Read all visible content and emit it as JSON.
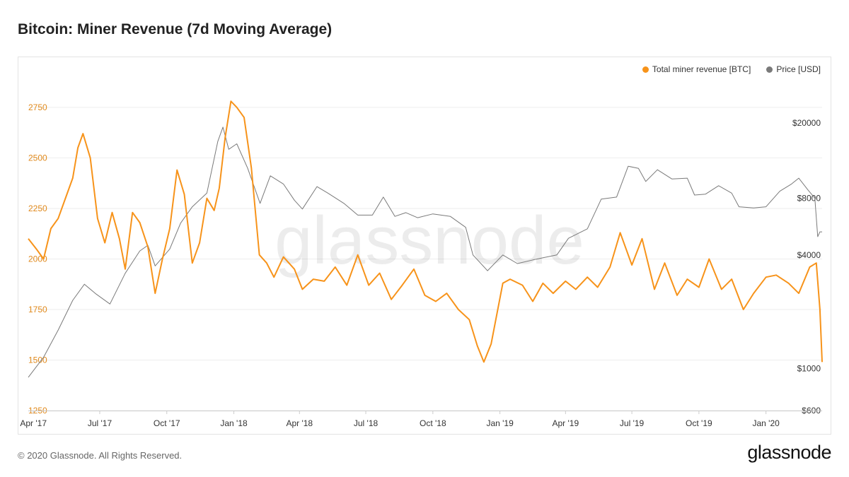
{
  "page": {
    "title": "Bitcoin: Miner Revenue (7d Moving Average)",
    "footer": "© 2020 Glassnode. All Rights Reserved.",
    "brand": "glassnode"
  },
  "colors": {
    "revenue": "#f7931a",
    "price": "#7a7a7a",
    "left_axis_text": "#e0891c",
    "grid": "#eeeeee"
  },
  "chart_data": {
    "type": "line",
    "title": "Bitcoin: Miner Revenue (7d Moving Average)",
    "watermark": "glassnode",
    "x_tick_labels": [
      "Apr '17",
      "Jul '17",
      "Oct '17",
      "Jan '18",
      "Apr '18",
      "Jul '18",
      "Oct '18",
      "Jan '19",
      "Apr '19",
      "Jul '19",
      "Oct '19",
      "Jan '20"
    ],
    "x_range": [
      "2017-03-25",
      "2020-03-18"
    ],
    "left_axis": {
      "label": "Total miner revenue [BTC]",
      "ticks": [
        1250,
        1500,
        1750,
        2000,
        2250,
        2500,
        2750
      ],
      "ylim": [
        1250,
        2900
      ]
    },
    "right_axis": {
      "label": "Price [USD]",
      "scale": "log",
      "ticks": [
        600,
        1000,
        4000,
        8000,
        20000
      ],
      "tick_labels": [
        "$600",
        "$1000",
        "$4000",
        "$8000",
        "$20000"
      ],
      "ylim": [
        600,
        35000
      ]
    },
    "legend": {
      "position": "top-right",
      "items": [
        "Total miner revenue [BTC]",
        "Price [USD]"
      ]
    },
    "series": [
      {
        "name": "Total miner revenue [BTC]",
        "axis": "left",
        "dates": [
          "2017-03-25",
          "2017-04-05",
          "2017-04-15",
          "2017-04-25",
          "2017-05-05",
          "2017-05-15",
          "2017-05-25",
          "2017-06-01",
          "2017-06-08",
          "2017-06-18",
          "2017-06-28",
          "2017-07-08",
          "2017-07-18",
          "2017-07-28",
          "2017-08-05",
          "2017-08-15",
          "2017-08-25",
          "2017-09-05",
          "2017-09-15",
          "2017-09-25",
          "2017-10-05",
          "2017-10-15",
          "2017-10-25",
          "2017-11-05",
          "2017-11-15",
          "2017-11-25",
          "2017-12-05",
          "2017-12-12",
          "2017-12-20",
          "2017-12-28",
          "2018-01-05",
          "2018-01-15",
          "2018-01-25",
          "2018-02-05",
          "2018-02-15",
          "2018-02-25",
          "2018-03-10",
          "2018-03-25",
          "2018-04-05",
          "2018-04-20",
          "2018-05-05",
          "2018-05-20",
          "2018-06-05",
          "2018-06-20",
          "2018-07-05",
          "2018-07-20",
          "2018-08-05",
          "2018-08-20",
          "2018-09-05",
          "2018-09-20",
          "2018-10-05",
          "2018-10-20",
          "2018-11-05",
          "2018-11-20",
          "2018-12-01",
          "2018-12-10",
          "2018-12-20",
          "2019-01-05",
          "2019-01-15",
          "2019-02-01",
          "2019-02-15",
          "2019-03-01",
          "2019-03-15",
          "2019-04-01",
          "2019-04-15",
          "2019-05-01",
          "2019-05-15",
          "2019-06-01",
          "2019-06-15",
          "2019-07-01",
          "2019-07-15",
          "2019-08-01",
          "2019-08-15",
          "2019-09-01",
          "2019-09-15",
          "2019-10-01",
          "2019-10-15",
          "2019-11-01",
          "2019-11-15",
          "2019-12-01",
          "2019-12-15",
          "2020-01-01",
          "2020-01-15",
          "2020-02-01",
          "2020-02-15",
          "2020-03-01",
          "2020-03-10",
          "2020-03-15",
          "2020-03-18"
        ],
        "values": [
          2100,
          2050,
          2000,
          2150,
          2200,
          2300,
          2400,
          2550,
          2620,
          2500,
          2200,
          2080,
          2230,
          2100,
          1950,
          2230,
          2180,
          2060,
          1830,
          2000,
          2150,
          2440,
          2320,
          1980,
          2080,
          2300,
          2240,
          2350,
          2600,
          2780,
          2750,
          2700,
          2450,
          2020,
          1980,
          1910,
          2010,
          1950,
          1850,
          1900,
          1890,
          1960,
          1870,
          2020,
          1870,
          1930,
          1800,
          1870,
          1950,
          1820,
          1790,
          1830,
          1750,
          1700,
          1570,
          1490,
          1580,
          1880,
          1900,
          1870,
          1790,
          1880,
          1830,
          1890,
          1850,
          1910,
          1860,
          1960,
          2130,
          1970,
          2100,
          1850,
          1980,
          1820,
          1900,
          1860,
          2000,
          1850,
          1900,
          1750,
          1830,
          1910,
          1920,
          1880,
          1830,
          1960,
          1980,
          1750,
          1490
        ]
      },
      {
        "name": "Price [USD]",
        "axis": "right",
        "dates": [
          "2017-03-25",
          "2017-04-15",
          "2017-05-05",
          "2017-05-25",
          "2017-06-10",
          "2017-06-25",
          "2017-07-15",
          "2017-08-05",
          "2017-08-25",
          "2017-09-05",
          "2017-09-15",
          "2017-10-05",
          "2017-10-20",
          "2017-11-05",
          "2017-11-25",
          "2017-12-10",
          "2017-12-17",
          "2017-12-25",
          "2018-01-05",
          "2018-01-20",
          "2018-02-06",
          "2018-02-20",
          "2018-03-10",
          "2018-03-25",
          "2018-04-05",
          "2018-04-25",
          "2018-05-10",
          "2018-06-01",
          "2018-06-20",
          "2018-07-10",
          "2018-07-25",
          "2018-08-10",
          "2018-08-25",
          "2018-09-10",
          "2018-10-01",
          "2018-10-25",
          "2018-11-15",
          "2018-11-25",
          "2018-12-15",
          "2019-01-05",
          "2019-01-25",
          "2019-02-20",
          "2019-03-20",
          "2019-04-05",
          "2019-05-01",
          "2019-05-20",
          "2019-06-10",
          "2019-06-26",
          "2019-07-10",
          "2019-07-20",
          "2019-08-05",
          "2019-08-25",
          "2019-09-15",
          "2019-09-25",
          "2019-10-10",
          "2019-10-28",
          "2019-11-15",
          "2019-11-25",
          "2019-12-15",
          "2020-01-01",
          "2020-01-20",
          "2020-02-05",
          "2020-02-15",
          "2020-02-28",
          "2020-03-08",
          "2020-03-12",
          "2020-03-15",
          "2020-03-18"
        ],
        "values": [
          900,
          1150,
          1600,
          2300,
          2800,
          2500,
          2200,
          3200,
          4200,
          4500,
          3500,
          4300,
          5900,
          7200,
          8500,
          16000,
          19000,
          14500,
          15500,
          11500,
          7500,
          10500,
          9500,
          7800,
          7000,
          9200,
          8500,
          7500,
          6500,
          6500,
          8100,
          6400,
          6700,
          6300,
          6600,
          6400,
          5600,
          4000,
          3300,
          4000,
          3600,
          3800,
          4000,
          4900,
          5500,
          7900,
          8100,
          11800,
          11500,
          9800,
          11300,
          10100,
          10200,
          8300,
          8400,
          9300,
          8500,
          7200,
          7100,
          7200,
          8700,
          9500,
          10200,
          8800,
          8000,
          5000,
          5300,
          5300
        ]
      }
    ]
  }
}
